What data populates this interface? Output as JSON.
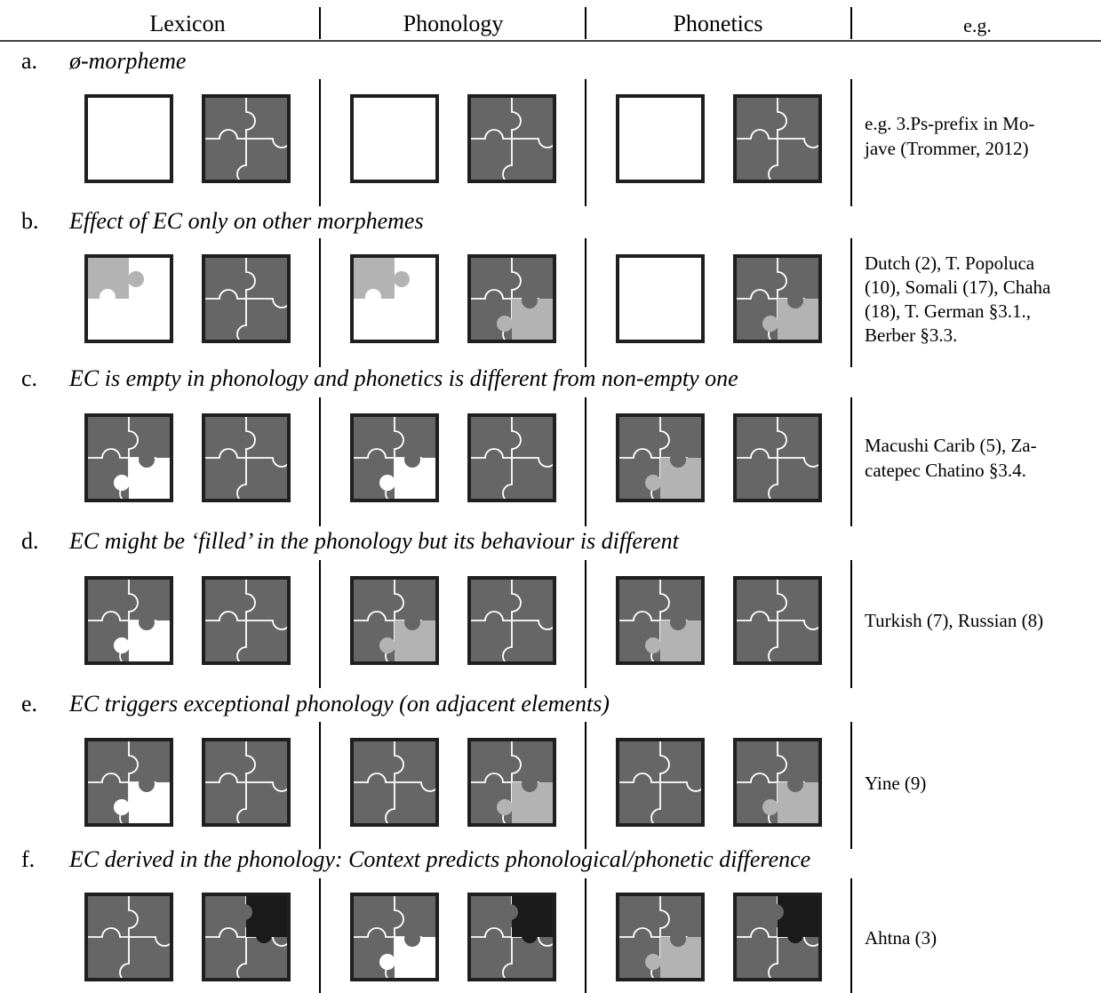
{
  "header": {
    "columns": [
      "Lexicon",
      "Phonology",
      "Phonetics",
      "e.g."
    ]
  },
  "colors": {
    "dark": "#666666",
    "light": "#b3b3b3",
    "black": "#1a1a1a",
    "empty": "#ffffff",
    "frame": "#1f1f1f"
  },
  "rows": [
    {
      "label": "a.",
      "title": "ø-morpheme",
      "example_lines": [
        "e.g. 3.Ps-prefix in Mo-",
        "jave (Trommer, 2012)"
      ],
      "tiles": [
        "empty",
        "full",
        "empty",
        "full",
        "empty",
        "full"
      ]
    },
    {
      "label": "b.",
      "title": "Effect of EC only on other morphemes",
      "example_lines": [
        "Dutch (2), T. Popoluca",
        "(10), Somali (17), Chaha",
        "(18), T. German §3.1.,",
        "Berber §3.3."
      ],
      "tiles": [
        "lonely-light",
        "full",
        "lonely-light",
        "br-light",
        "empty",
        "br-light"
      ]
    },
    {
      "label": "c.",
      "title": "EC is empty in phonology and phonetics is different from non-empty one",
      "example_lines": [
        "Macushi Carib (5), Za-",
        "catepec Chatino §3.4."
      ],
      "tiles": [
        "br-empty",
        "full",
        "br-empty",
        "full",
        "br-light",
        "full"
      ]
    },
    {
      "label": "d.",
      "title": "EC might be ‘filled’ in the phonology but its behaviour is different",
      "example_lines": [
        "Turkish (7), Russian (8)"
      ],
      "tiles": [
        "br-empty",
        "full",
        "br-light",
        "full",
        "br-light",
        "full"
      ]
    },
    {
      "label": "e.",
      "title": "EC triggers exceptional phonology (on adjacent elements)",
      "example_lines": [
        "Yine (9)"
      ],
      "tiles": [
        "br-empty",
        "full",
        "full",
        "br-light",
        "full",
        "br-light"
      ]
    },
    {
      "label": "f.",
      "title": "EC derived in the phonology: Context predicts phonological/phonetic difference",
      "example_lines": [
        "Ahtna (3)"
      ],
      "tiles": [
        "full",
        "tr-black",
        "br-empty",
        "tr-black",
        "br-light",
        "tr-black"
      ]
    }
  ]
}
